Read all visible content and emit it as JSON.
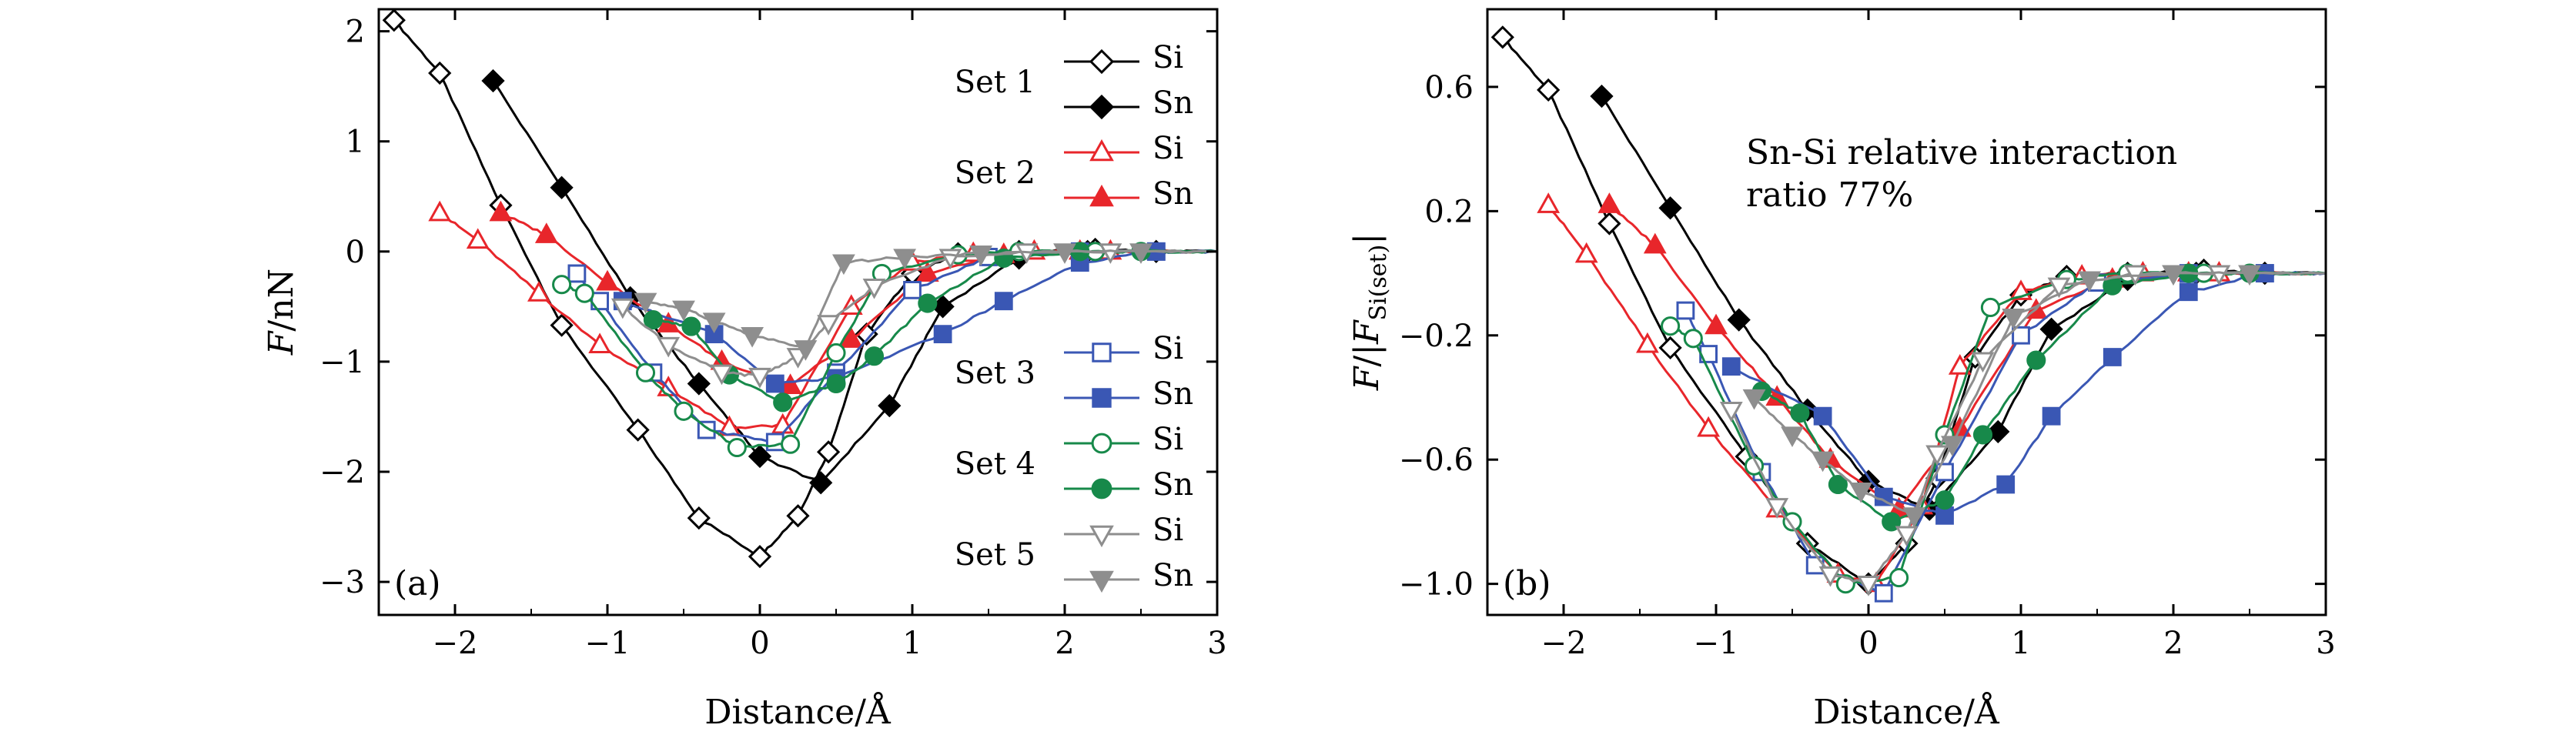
{
  "colors": {
    "Si1": "#000000",
    "Sn1": "#000000",
    "Si2": "#e8262b",
    "Sn2": "#e8262b",
    "Si3": "#3a57b4",
    "Sn3": "#3a57b4",
    "Si4": "#17894a",
    "Sn4": "#17894a",
    "Si5": "#8e8e8e",
    "Sn5": "#8e8e8e"
  },
  "legend": {
    "sets": [
      {
        "label": "Set 1",
        "si": "Si",
        "sn": "Sn"
      },
      {
        "label": "Set 2",
        "si": "Si",
        "sn": "Sn"
      },
      {
        "label": "Set 3",
        "si": "Si",
        "sn": "Sn"
      },
      {
        "label": "Set 4",
        "si": "Si",
        "sn": "Sn"
      },
      {
        "label": "Set 5",
        "si": "Si",
        "sn": "Sn"
      }
    ]
  },
  "annotation": {
    "line1": "Sn-Si relative interaction",
    "line2": "ratio 77%"
  },
  "chart_data": [
    {
      "type": "line",
      "panel": "(a)",
      "xlabel": "Distance/Å",
      "ylabel": "F/nN",
      "xlim": [
        -2.5,
        3
      ],
      "ylim": [
        -3.3,
        2.2
      ],
      "xticks": [
        -2,
        -1,
        0,
        1,
        2,
        3
      ],
      "yticks": [
        -3,
        -2,
        -1,
        0,
        1,
        2
      ],
      "series": [
        {
          "key": "Si1",
          "marker": "diamond",
          "filled": false,
          "x": [
            -2.4,
            -2.1,
            -1.7,
            -1.3,
            -0.8,
            -0.4,
            0.0,
            0.25,
            0.45,
            0.7,
            1.0,
            1.3,
            1.7,
            2.2,
            2.6,
            3.0
          ],
          "y": [
            2.1,
            1.62,
            0.42,
            -0.67,
            -1.62,
            -2.42,
            -2.77,
            -2.4,
            -1.82,
            -0.75,
            -0.2,
            -0.02,
            0.0,
            0.02,
            0.0,
            0.0
          ]
        },
        {
          "key": "Sn1",
          "marker": "diamond",
          "filled": true,
          "x": [
            -1.75,
            -1.3,
            -0.85,
            -0.4,
            0.0,
            0.4,
            0.85,
            1.2,
            1.7,
            2.15,
            2.6,
            3.0
          ],
          "y": [
            1.55,
            0.58,
            -0.42,
            -1.2,
            -1.86,
            -2.1,
            -1.4,
            -0.5,
            -0.06,
            0.0,
            0.0,
            0.0
          ]
        },
        {
          "key": "Si2",
          "marker": "triangle",
          "filled": false,
          "x": [
            -2.1,
            -1.85,
            -1.45,
            -1.05,
            -0.6,
            -0.2,
            0.15,
            0.6,
            1.0,
            1.4,
            1.8,
            2.3,
            3.0
          ],
          "y": [
            0.35,
            0.1,
            -0.38,
            -0.85,
            -1.24,
            -1.6,
            -1.58,
            -0.5,
            -0.1,
            -0.02,
            0.0,
            0.0,
            0.0
          ]
        },
        {
          "key": "Sn2",
          "marker": "triangle",
          "filled": true,
          "x": [
            -1.7,
            -1.4,
            -1.0,
            -0.6,
            -0.25,
            0.2,
            0.6,
            1.1,
            1.6,
            2.1,
            3.0
          ],
          "y": [
            0.35,
            0.15,
            -0.28,
            -0.66,
            -1.0,
            -1.22,
            -0.8,
            -0.2,
            -0.03,
            0.0,
            0.0
          ]
        },
        {
          "key": "Si3",
          "marker": "square",
          "filled": false,
          "x": [
            -1.2,
            -1.05,
            -0.7,
            -0.35,
            0.1,
            0.5,
            1.0,
            1.5,
            2.1,
            2.6,
            3.0
          ],
          "y": [
            -0.2,
            -0.45,
            -1.1,
            -1.62,
            -1.73,
            -1.1,
            -0.35,
            -0.05,
            0.0,
            0.0,
            0.0
          ]
        },
        {
          "key": "Sn3",
          "marker": "square",
          "filled": true,
          "x": [
            -0.9,
            -0.3,
            0.1,
            0.5,
            1.2,
            1.6,
            2.1,
            2.6,
            3.0
          ],
          "y": [
            -0.45,
            -0.75,
            -1.2,
            -1.15,
            -0.75,
            -0.45,
            -0.1,
            0.0,
            0.0
          ]
        },
        {
          "key": "Si4",
          "marker": "circle",
          "filled": false,
          "x": [
            -1.3,
            -1.15,
            -0.75,
            -0.5,
            -0.15,
            0.2,
            0.5,
            0.8,
            1.3,
            1.7,
            2.2,
            3.0
          ],
          "y": [
            -0.3,
            -0.38,
            -1.1,
            -1.45,
            -1.78,
            -1.75,
            -0.92,
            -0.2,
            -0.03,
            0.0,
            0.0,
            0.0
          ]
        },
        {
          "key": "Sn4",
          "marker": "circle",
          "filled": true,
          "x": [
            -0.7,
            -0.45,
            -0.2,
            0.15,
            0.5,
            0.75,
            1.1,
            1.6,
            2.1,
            2.5,
            3.0
          ],
          "y": [
            -0.62,
            -0.68,
            -1.12,
            -1.37,
            -1.2,
            -0.95,
            -0.47,
            -0.06,
            0.0,
            0.0,
            0.0
          ]
        },
        {
          "key": "Si5",
          "marker": "triangle-down",
          "filled": false,
          "x": [
            -0.9,
            -0.6,
            -0.25,
            0.0,
            0.25,
            0.45,
            0.75,
            1.25,
            1.75,
            2.3,
            3.0
          ],
          "y": [
            -0.5,
            -0.85,
            -1.1,
            -1.13,
            -0.95,
            -0.65,
            -0.32,
            -0.05,
            0.0,
            0.0,
            0.0
          ]
        },
        {
          "key": "Sn5",
          "marker": "triangle-down",
          "filled": true,
          "x": [
            -0.75,
            -0.5,
            -0.3,
            -0.05,
            0.3,
            0.55,
            0.95,
            1.45,
            2.0,
            2.5,
            3.0
          ],
          "y": [
            -0.45,
            -0.52,
            -0.63,
            -0.76,
            -0.88,
            -0.1,
            -0.05,
            -0.02,
            0.0,
            0.0,
            0.0
          ]
        }
      ]
    },
    {
      "type": "line",
      "panel": "(b)",
      "xlabel": "Distance/Å",
      "ylabel": "F/|F_Si(set)|",
      "ylabel_main": "F/|F",
      "ylabel_sub": "Si(set)",
      "ylabel_end": "|",
      "xlim": [
        -2.5,
        3
      ],
      "ylim": [
        -1.1,
        0.85
      ],
      "xticks": [
        -2,
        -1,
        0,
        1,
        2,
        3
      ],
      "yticks": [
        -1.0,
        -0.6,
        -0.2,
        0.2,
        0.6
      ],
      "ytick_labels": [
        "−1.0",
        "−0.6",
        "−0.2",
        "0.2",
        "0.6"
      ],
      "series": [
        {
          "key": "Si1",
          "marker": "diamond",
          "filled": false,
          "x": [
            -2.4,
            -2.1,
            -1.7,
            -1.3,
            -0.8,
            -0.4,
            0.0,
            0.25,
            0.45,
            0.7,
            1.0,
            1.3,
            1.7,
            2.2,
            2.6,
            3.0
          ],
          "y": [
            0.76,
            0.59,
            0.16,
            -0.24,
            -0.59,
            -0.87,
            -1.0,
            -0.87,
            -0.66,
            -0.27,
            -0.07,
            -0.01,
            0.0,
            0.01,
            0.0,
            0.0
          ]
        },
        {
          "key": "Sn1",
          "marker": "diamond",
          "filled": true,
          "x": [
            -1.75,
            -1.3,
            -0.85,
            -0.4,
            0.0,
            0.4,
            0.85,
            1.2,
            1.7,
            2.15,
            2.6,
            3.0
          ],
          "y": [
            0.57,
            0.21,
            -0.15,
            -0.44,
            -0.67,
            -0.76,
            -0.51,
            -0.18,
            -0.02,
            0.0,
            0.0,
            0.0
          ]
        },
        {
          "key": "Si2",
          "marker": "triangle",
          "filled": false,
          "x": [
            -2.1,
            -1.85,
            -1.45,
            -1.05,
            -0.6,
            -0.2,
            0.05,
            0.35,
            0.6,
            1.0,
            1.4,
            1.8,
            2.3,
            3.0
          ],
          "y": [
            0.22,
            0.06,
            -0.23,
            -0.5,
            -0.76,
            -0.97,
            -1.0,
            -0.75,
            -0.3,
            -0.06,
            -0.01,
            0.0,
            0.0,
            0.0
          ]
        },
        {
          "key": "Sn2",
          "marker": "triangle",
          "filled": true,
          "x": [
            -1.7,
            -1.4,
            -1.0,
            -0.6,
            -0.25,
            0.2,
            0.6,
            1.1,
            1.6,
            2.1,
            3.0
          ],
          "y": [
            0.22,
            0.09,
            -0.17,
            -0.4,
            -0.6,
            -0.76,
            -0.5,
            -0.12,
            -0.02,
            0.0,
            0.0
          ]
        },
        {
          "key": "Si3",
          "marker": "square",
          "filled": false,
          "x": [
            -1.2,
            -1.05,
            -0.7,
            -0.35,
            0.1,
            0.5,
            1.0,
            1.5,
            2.1,
            2.6,
            3.0
          ],
          "y": [
            -0.12,
            -0.26,
            -0.64,
            -0.94,
            -1.03,
            -0.64,
            -0.2,
            -0.03,
            0.0,
            0.0,
            0.0
          ]
        },
        {
          "key": "Sn3",
          "marker": "square",
          "filled": true,
          "x": [
            -0.9,
            -0.3,
            0.1,
            0.5,
            0.9,
            1.2,
            1.6,
            2.1,
            2.6,
            3.0
          ],
          "y": [
            -0.3,
            -0.46,
            -0.72,
            -0.78,
            -0.68,
            -0.46,
            -0.27,
            -0.06,
            0.0,
            0.0
          ]
        },
        {
          "key": "Si4",
          "marker": "circle",
          "filled": false,
          "x": [
            -1.3,
            -1.15,
            -0.75,
            -0.5,
            -0.15,
            0.2,
            0.5,
            0.8,
            1.3,
            1.7,
            2.2,
            3.0
          ],
          "y": [
            -0.17,
            -0.21,
            -0.62,
            -0.8,
            -1.0,
            -0.98,
            -0.52,
            -0.11,
            -0.02,
            0.0,
            0.0,
            0.0
          ]
        },
        {
          "key": "Sn4",
          "marker": "circle",
          "filled": true,
          "x": [
            -0.7,
            -0.45,
            -0.2,
            0.15,
            0.5,
            0.75,
            1.1,
            1.6,
            2.1,
            2.5,
            3.0
          ],
          "y": [
            -0.38,
            -0.45,
            -0.68,
            -0.8,
            -0.73,
            -0.52,
            -0.28,
            -0.04,
            0.0,
            0.0,
            0.0
          ]
        },
        {
          "key": "Si5",
          "marker": "triangle-down",
          "filled": false,
          "x": [
            -0.9,
            -0.6,
            -0.25,
            0.0,
            0.25,
            0.45,
            0.75,
            1.25,
            1.75,
            2.3,
            3.0
          ],
          "y": [
            -0.44,
            -0.75,
            -0.97,
            -1.0,
            -0.84,
            -0.58,
            -0.28,
            -0.04,
            0.0,
            0.0,
            0.0
          ]
        },
        {
          "key": "Sn5",
          "marker": "triangle-down",
          "filled": true,
          "x": [
            -0.75,
            -0.5,
            -0.3,
            -0.05,
            0.3,
            0.55,
            0.95,
            1.45,
            2.0,
            2.5,
            3.0
          ],
          "y": [
            -0.4,
            -0.52,
            -0.6,
            -0.7,
            -0.78,
            -0.55,
            -0.14,
            -0.02,
            0.0,
            0.0,
            0.0
          ]
        }
      ]
    }
  ]
}
